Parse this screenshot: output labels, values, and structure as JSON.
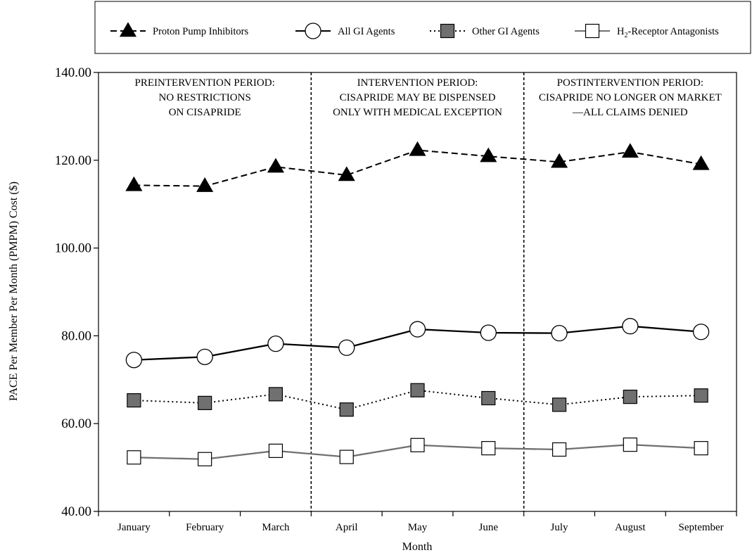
{
  "chart_data": {
    "type": "line",
    "xlabel": "Month",
    "ylabel": "PACE Per Member Per Month (PMPM) Cost ($)",
    "categories": [
      "January",
      "February",
      "March",
      "April",
      "May",
      "June",
      "July",
      "August",
      "September"
    ],
    "ylim": [
      40,
      140
    ],
    "yticks": [
      "40.00",
      "60.00",
      "80.00",
      "100.00",
      "120.00",
      "140.00"
    ],
    "grid": false,
    "legend_position": "top",
    "series": [
      {
        "name": "Proton Pump Inhibitors",
        "marker": "triangle",
        "line": "dashed",
        "color": "#000000",
        "marker_fill": "#000000",
        "values": [
          114.3,
          114.1,
          118.5,
          116.6,
          122.3,
          120.9,
          119.6,
          121.9,
          119.1
        ]
      },
      {
        "name": "All GI Agents",
        "marker": "circle",
        "line": "solid",
        "color": "#000000",
        "marker_fill": "#ffffff",
        "values": [
          74.5,
          75.2,
          78.2,
          77.3,
          81.5,
          80.7,
          80.6,
          82.2,
          80.9
        ]
      },
      {
        "name": "Other GI Agents",
        "marker": "square",
        "line": "dotted",
        "color": "#000000",
        "marker_fill": "#707070",
        "values": [
          65.3,
          64.7,
          66.7,
          63.2,
          67.6,
          65.8,
          64.3,
          66.1,
          66.4
        ]
      },
      {
        "name_main": "H",
        "name_sub": "2",
        "name_rest": "-Receptor Antagonists",
        "marker": "square",
        "line": "solid",
        "color": "#707070",
        "marker_fill": "#ffffff",
        "values": [
          52.3,
          51.9,
          53.8,
          52.4,
          55.1,
          54.4,
          54.1,
          55.2,
          54.4
        ]
      }
    ],
    "periods": [
      {
        "lines": [
          "PREINTERVENTION PERIOD:",
          "NO RESTRICTIONS",
          "ON CISAPRIDE"
        ]
      },
      {
        "lines": [
          "INTERVENTION PERIOD:",
          "CISAPRIDE MAY BE DISPENSED",
          "ONLY WITH MEDICAL EXCEPTION"
        ]
      },
      {
        "lines": [
          "POSTINTERVENTION PERIOD:",
          "CISAPRIDE NO LONGER ON MARKET",
          "—ALL CLAIMS DENIED"
        ]
      }
    ],
    "period_dividers_after": [
      3,
      6
    ]
  }
}
